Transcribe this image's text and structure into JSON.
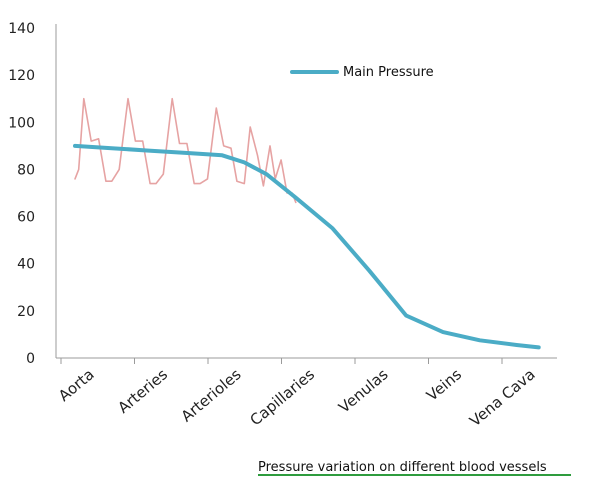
{
  "chart_data": {
    "type": "line",
    "categories": [
      "Aorta",
      "Arteries",
      "Arterioles",
      "Capillaries",
      "Venulas",
      "Veins",
      "Vena Cava"
    ],
    "yticks": [
      0,
      20,
      40,
      60,
      80,
      100,
      120,
      140
    ],
    "ylim": [
      0,
      140
    ],
    "grid": false,
    "legend_position": "top-right",
    "series": [
      {
        "name": "Main Pressure",
        "color": "#4bacc6",
        "x": [
          0.0,
          0.5,
          1.0,
          1.5,
          2.0,
          2.3,
          2.6,
          3.0,
          3.5,
          4.0,
          4.5,
          5.0,
          5.5,
          6.0,
          6.3
        ],
        "values": [
          90,
          89,
          88,
          87,
          86,
          83,
          78,
          68,
          55,
          37,
          18,
          11,
          7.5,
          5.5,
          4.5
        ]
      },
      {
        "name": "",
        "color": "#e6a3a3",
        "x": [
          0.0,
          0.05,
          0.12,
          0.22,
          0.32,
          0.42,
          0.5,
          0.6,
          0.72,
          0.82,
          0.92,
          1.02,
          1.1,
          1.2,
          1.32,
          1.42,
          1.52,
          1.62,
          1.7,
          1.8,
          1.92,
          2.02,
          2.12,
          2.2,
          2.3,
          2.38,
          2.48,
          2.56,
          2.65,
          2.72,
          2.8,
          2.88,
          2.95,
          3.0
        ],
        "values": [
          76,
          80,
          110,
          92,
          93,
          75,
          75,
          80,
          110,
          92,
          92,
          74,
          74,
          78,
          110,
          91,
          91,
          74,
          74,
          76,
          106,
          90,
          89,
          75,
          74,
          98,
          86,
          73,
          90,
          76,
          84,
          70,
          70,
          66
        ]
      }
    ],
    "caption": "Pressure variation on different blood vessels",
    "caption_underline_color": "#2e9c3e",
    "axis_color": "#9b9b9b"
  }
}
